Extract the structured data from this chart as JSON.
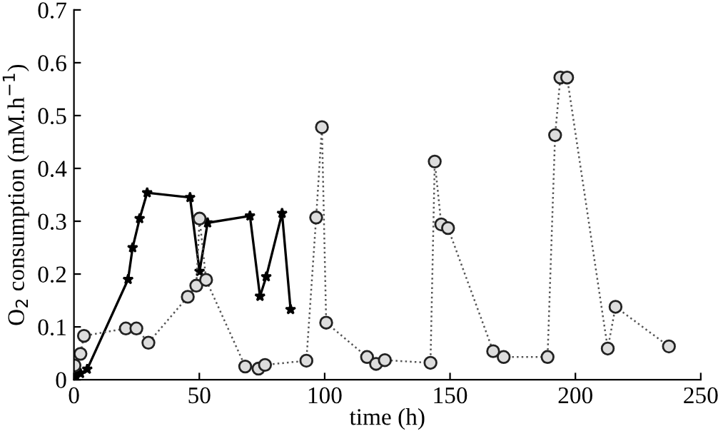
{
  "chart_data": {
    "type": "line",
    "xlabel": "time (h)",
    "ylabel": "O$_{2}$ consumption (mM.h$^{−1}$)",
    "xlim": [
      0,
      250
    ],
    "xticks": [
      0,
      50,
      100,
      150,
      200,
      250
    ],
    "ylim": [
      0,
      0.7
    ],
    "yticks": [
      0,
      0.1,
      0.2,
      0.3,
      0.4,
      0.5,
      0.6,
      0.7
    ],
    "grid": false,
    "legend": false,
    "series": [
      {
        "color": "#000000",
        "marker": "star",
        "line_style": "solid",
        "x": [
          0.8,
          2.6,
          5.3,
          21.6,
          23.4,
          26.2,
          29.2,
          46.3,
          50.1,
          53.3,
          70.2,
          74.2,
          76.7,
          83,
          86.4
        ],
        "values": [
          0.005,
          0.012,
          0.02,
          0.19,
          0.25,
          0.305,
          0.354,
          0.345,
          0.205,
          0.297,
          0.31,
          0.158,
          0.195,
          0.315,
          0.133
        ]
      },
      {
        "color": "#555555",
        "marker": "circle",
        "line_style": "dotted",
        "x": [
          0.2,
          2.6,
          4,
          20.7,
          24.9,
          29.7,
          45.4,
          48.8,
          50.1,
          52.7,
          68.3,
          73.6,
          76.2,
          92.7,
          96.6,
          98.9,
          100.6,
          116.9,
          120.5,
          124,
          142.2,
          143.9,
          146.5,
          149.2,
          167.2,
          171.4,
          188.9,
          191.9,
          194,
          196.7,
          212.9,
          216,
          237.3
        ],
        "values": [
          0.027,
          0.049,
          0.083,
          0.097,
          0.097,
          0.07,
          0.157,
          0.178,
          0.305,
          0.189,
          0.025,
          0.021,
          0.028,
          0.036,
          0.307,
          0.478,
          0.108,
          0.043,
          0.03,
          0.037,
          0.032,
          0.413,
          0.294,
          0.287,
          0.054,
          0.043,
          0.043,
          0.463,
          0.572,
          0.572,
          0.059,
          0.138,
          0.063
        ]
      }
    ]
  }
}
